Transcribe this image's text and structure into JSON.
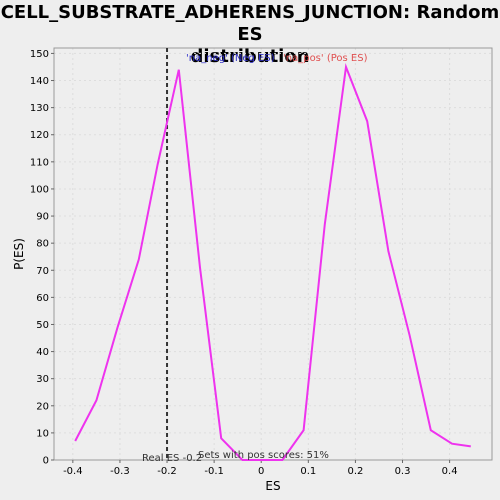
{
  "chart_data": {
    "type": "line",
    "title_line1": "CELL_SUBSTRATE_ADHERENS_JUNCTION: Random ES",
    "title_line2": "distribution",
    "xlabel": "ES",
    "ylabel": "P(ES)",
    "xlim": [
      -0.44,
      0.49
    ],
    "ylim": [
      0,
      152
    ],
    "x_ticks": [
      -0.4,
      -0.3,
      -0.2,
      -0.1,
      0.0,
      0.1,
      0.2,
      0.3,
      0.4
    ],
    "x_tick_labels": [
      "-0.4",
      "-0.3",
      "-0.2",
      "-0.1",
      "0",
      "0.1",
      "0.2",
      "0.3",
      "0.4"
    ],
    "y_ticks": [
      0,
      10,
      20,
      30,
      40,
      50,
      60,
      70,
      80,
      90,
      100,
      110,
      120,
      130,
      140,
      150
    ],
    "y_tick_labels": [
      "0",
      "10",
      "20",
      "30",
      "40",
      "50",
      "60",
      "70",
      "80",
      "90",
      "100",
      "110",
      "120",
      "130",
      "140",
      "150"
    ],
    "grid": true,
    "legend": [
      {
        "label": "'na_neg' (Neg ES)",
        "color": "#3333cc"
      },
      {
        "label": "'na_pos' (Pos ES)",
        "color": "#e05050"
      }
    ],
    "series": [
      {
        "color": "#ee33ee",
        "x": [
          -0.395,
          -0.35,
          -0.305,
          -0.26,
          -0.22,
          -0.175,
          -0.13,
          -0.085,
          -0.04,
          0.0,
          0.045,
          0.09,
          0.135,
          0.18,
          0.225,
          0.27,
          0.315,
          0.36,
          0.405,
          0.445
        ],
        "y": [
          7,
          22,
          49,
          74,
          109,
          144,
          71,
          8,
          0,
          0,
          0,
          11,
          87,
          145,
          125,
          77,
          46,
          11,
          6,
          5
        ]
      }
    ],
    "real_es": -0.2,
    "annotations": {
      "real_es_label": "Real ES -0.2",
      "pos_scores_label": "Sets with pos scores: 51%"
    }
  }
}
